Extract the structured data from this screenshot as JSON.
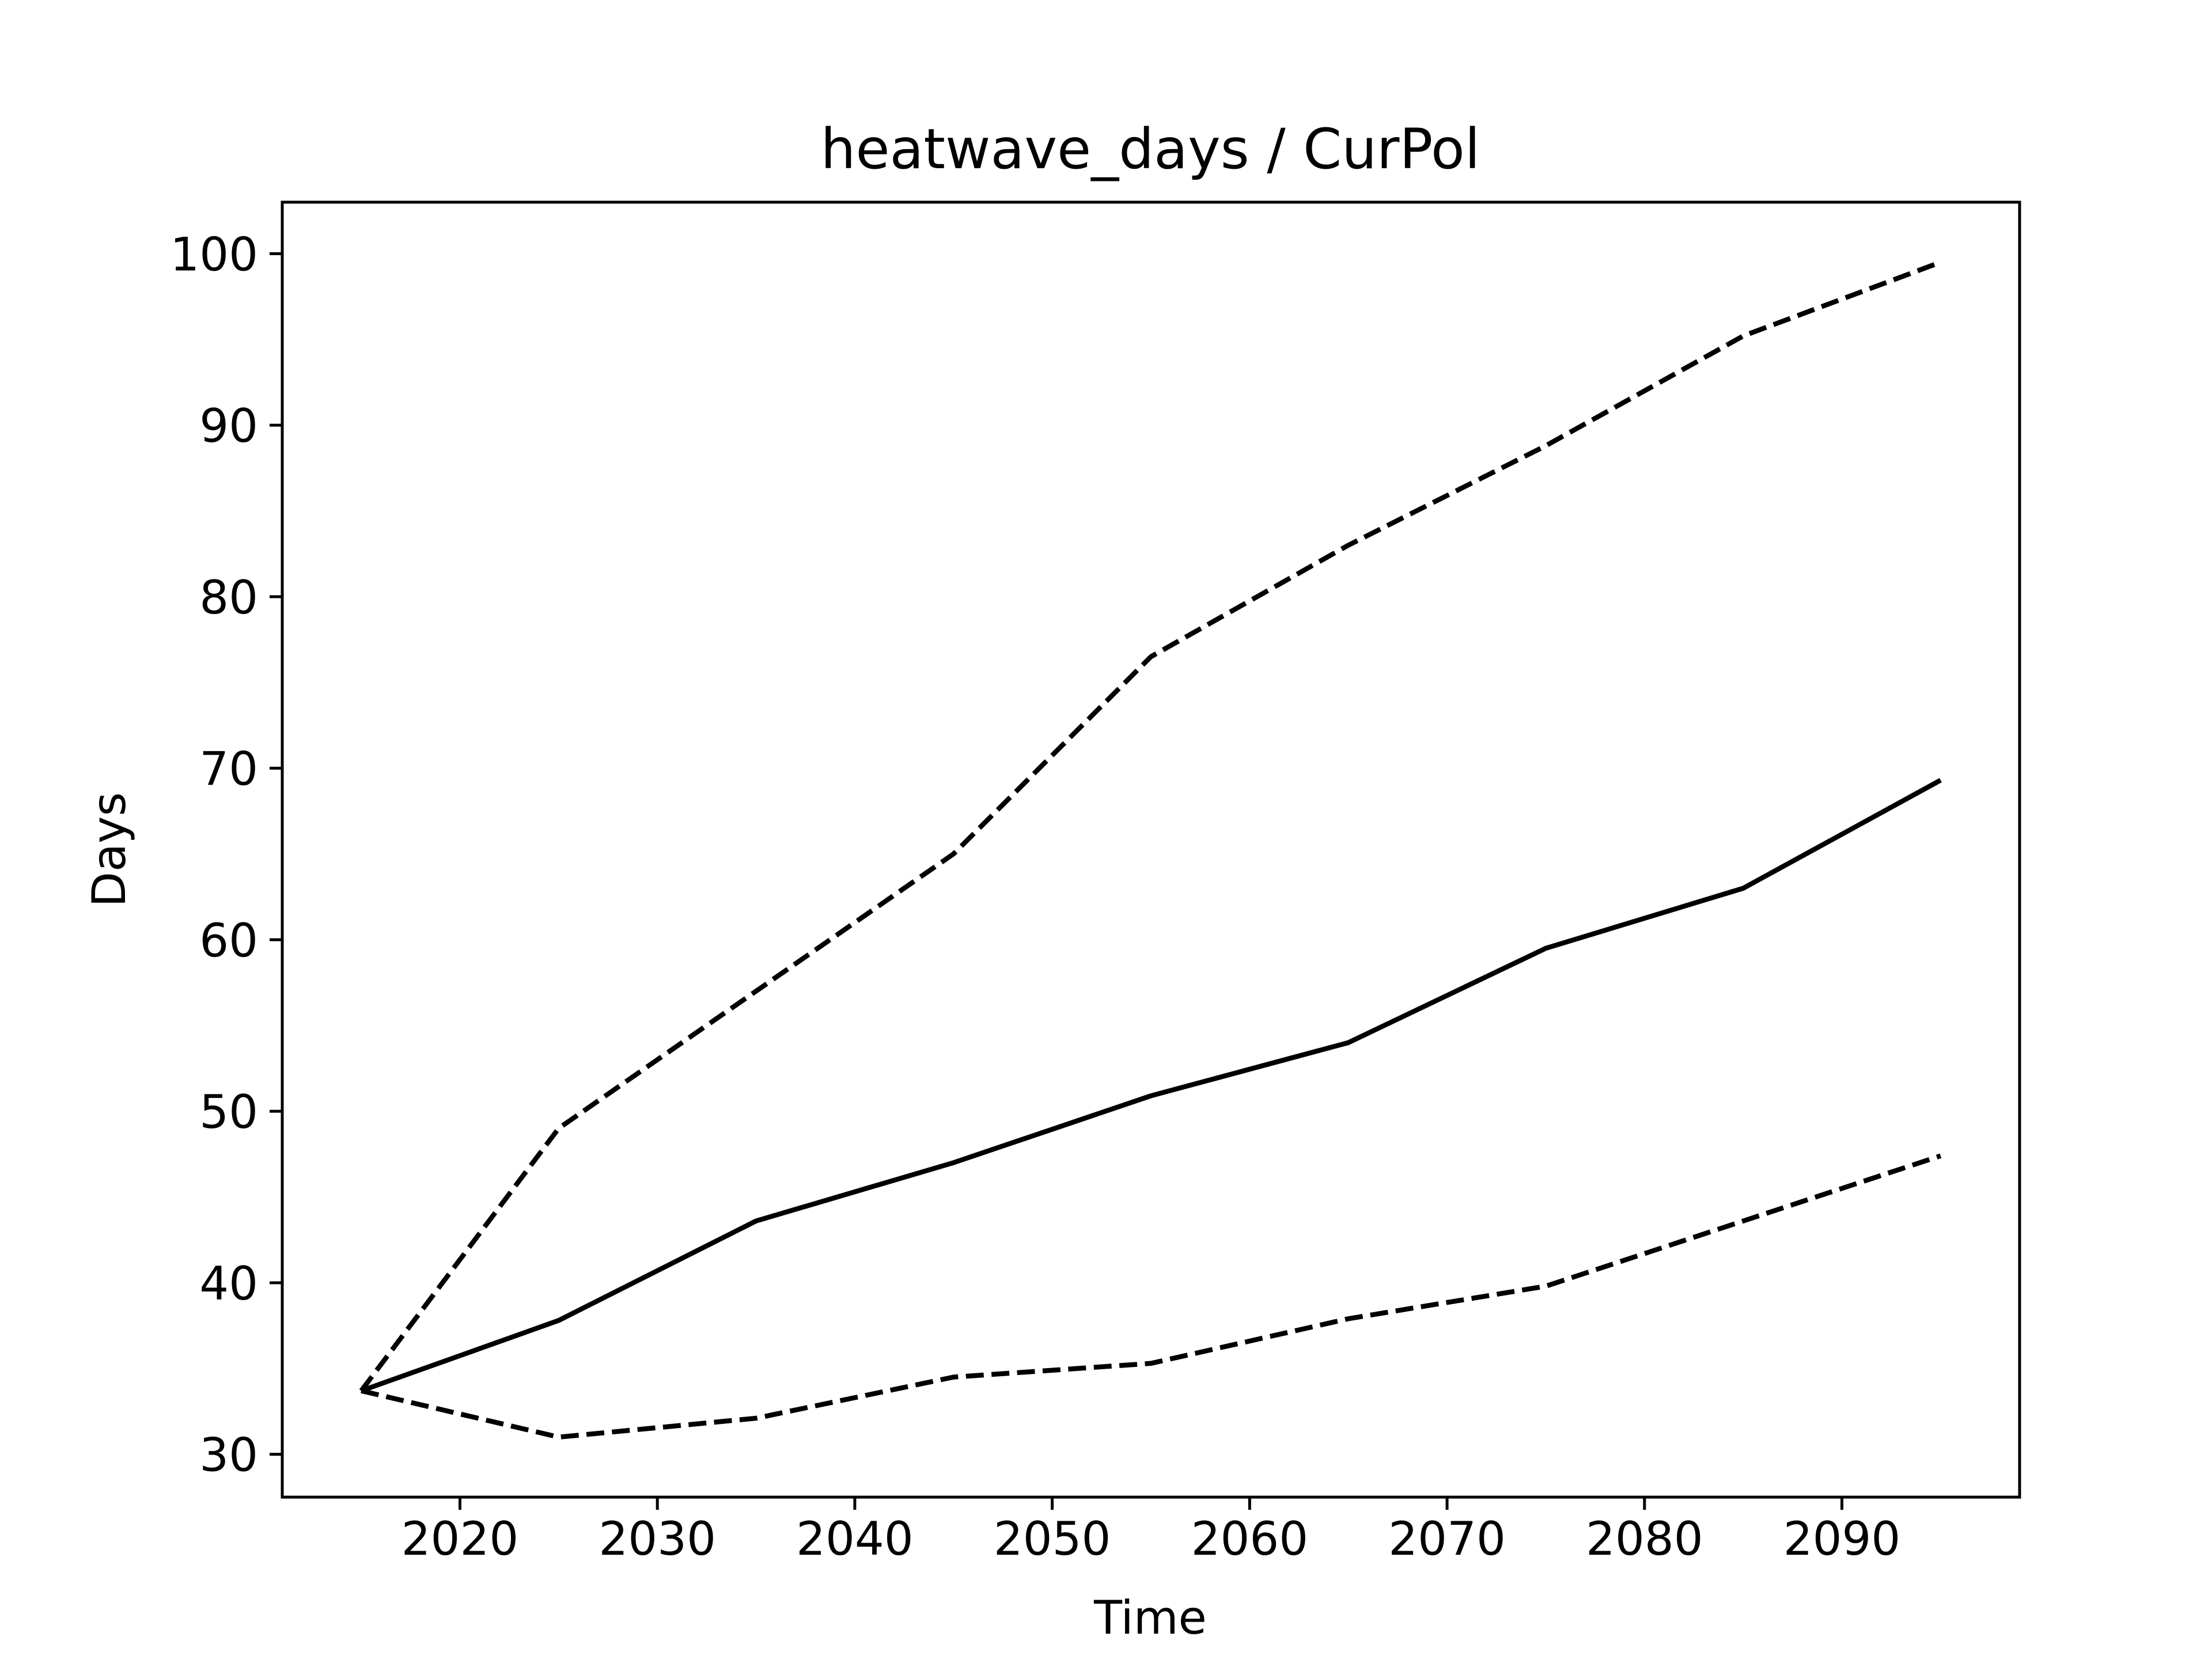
{
  "chart_data": {
    "type": "line",
    "title": "heatwave_days / CurPol",
    "xlabel": "Time",
    "ylabel": "Days",
    "x": [
      2015,
      2025,
      2035,
      2045,
      2055,
      2065,
      2075,
      2085,
      2095
    ],
    "xlim": [
      2011,
      2099
    ],
    "ylim": [
      27.5,
      103
    ],
    "xticks": [
      2020,
      2030,
      2040,
      2050,
      2060,
      2070,
      2080,
      2090
    ],
    "yticks": [
      30,
      40,
      50,
      60,
      70,
      80,
      90,
      100
    ],
    "grid": false,
    "series": [
      {
        "style": "solid",
        "color": "#000000",
        "values": [
          33.7,
          37.8,
          43.6,
          47.0,
          50.9,
          54.0,
          59.5,
          63.0,
          69.3
        ]
      },
      {
        "style": "dashed",
        "color": "#000000",
        "values": [
          33.7,
          49.0,
          57.0,
          65.0,
          76.5,
          83.0,
          88.8,
          95.2,
          99.5
        ]
      },
      {
        "style": "dashed",
        "color": "#000000",
        "values": [
          33.7,
          31.0,
          32.1,
          34.5,
          35.3,
          37.9,
          39.8,
          43.6,
          47.4
        ]
      }
    ]
  }
}
